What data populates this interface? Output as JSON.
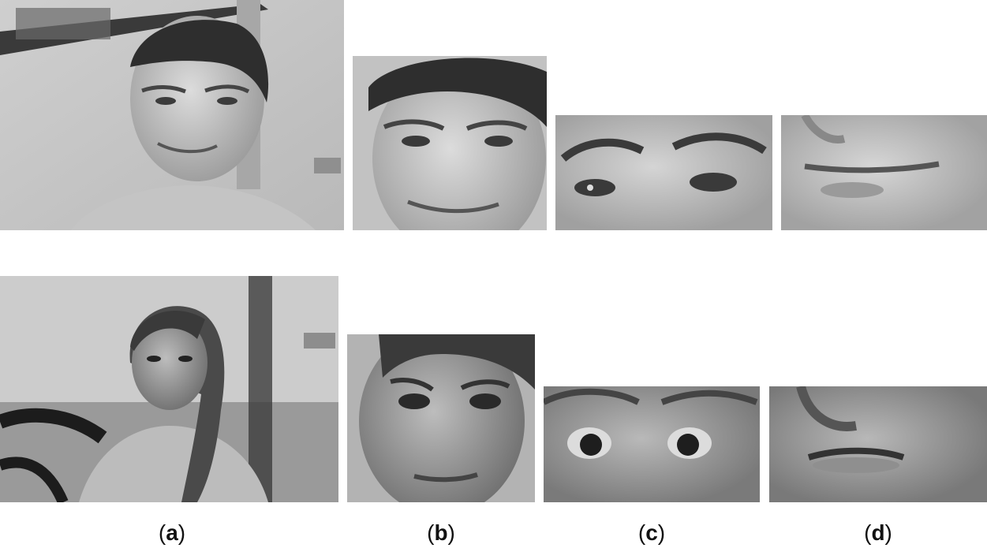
{
  "figure": {
    "captions": [
      {
        "paren_open": "(",
        "letter": "a",
        "paren_close": ")"
      },
      {
        "paren_open": "(",
        "letter": "b",
        "paren_close": ")"
      },
      {
        "paren_open": "(",
        "letter": "c",
        "paren_close": ")"
      },
      {
        "paren_open": "(",
        "letter": "d",
        "paren_close": ")"
      }
    ]
  }
}
